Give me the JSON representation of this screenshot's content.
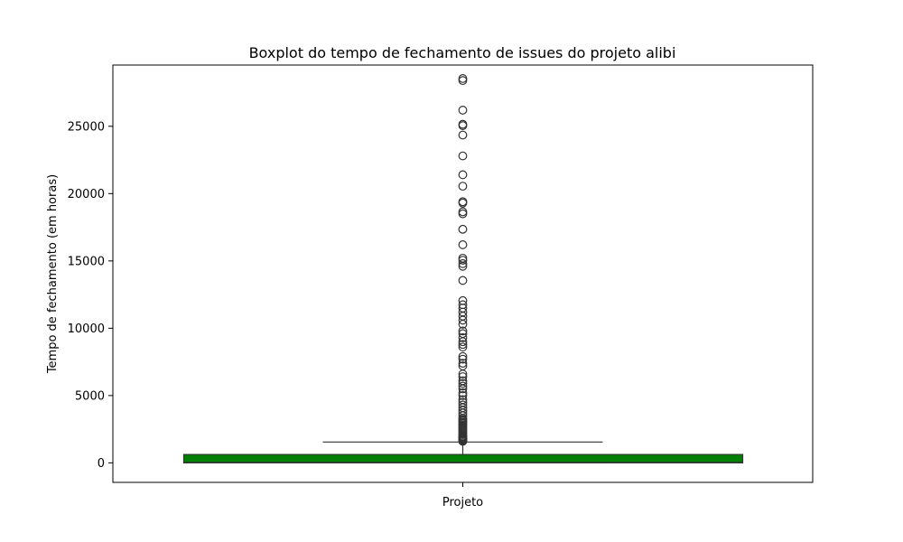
{
  "chart_data": {
    "type": "box",
    "title": "Boxplot do tempo de fechamento de issues do projeto alibi",
    "xlabel": "Projeto",
    "ylabel": "Tempo de fechamento (em horas)",
    "ylim": [
      -1450,
      29550
    ],
    "yticks": [
      0,
      5000,
      10000,
      15000,
      20000,
      25000
    ],
    "ytick_labels": [
      "0",
      "5000",
      "10000",
      "15000",
      "20000",
      "25000"
    ],
    "grid": false,
    "box": {
      "color": "#008000",
      "whisker_low": 0,
      "q1": 0,
      "median": 30,
      "q3": 620,
      "whisker_high": 1550
    },
    "outliers": [
      28550,
      28400,
      26200,
      25150,
      25050,
      24350,
      22800,
      21400,
      20550,
      19400,
      19300,
      18650,
      18500,
      17350,
      16200,
      15200,
      15050,
      14800,
      14600,
      13550,
      12050,
      11750,
      11500,
      11200,
      10900,
      10600,
      10300,
      9800,
      9600,
      9300,
      9000,
      8800,
      8600,
      7900,
      7700,
      7400,
      7200,
      6600,
      6400,
      6100,
      5900,
      5700,
      5500,
      5200,
      5000,
      4700,
      4500,
      4300,
      4100,
      3900,
      3700,
      3500,
      3300,
      3200,
      3100,
      3000,
      2900,
      2800,
      2700,
      2600,
      2500,
      2400,
      2300,
      2200,
      2100,
      2000,
      1950,
      1900,
      1850,
      1800,
      1750,
      1700,
      1650,
      1600
    ]
  }
}
